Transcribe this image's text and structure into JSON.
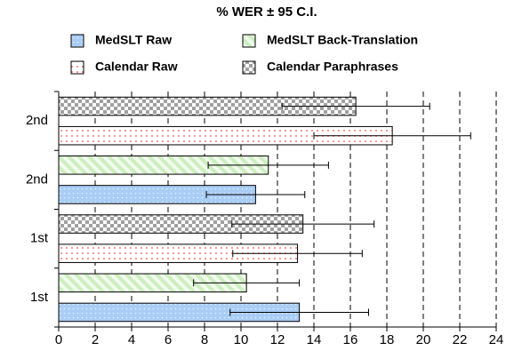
{
  "chart_data": {
    "type": "barh",
    "title": "% WER ± 95 C.I.",
    "categories": [
      "1st",
      "1st",
      "2nd",
      "2nd"
    ],
    "series": [
      {
        "name": "MedSLT Raw",
        "color": "#a9cdf5",
        "pattern": "dots",
        "values": [
          13.2,
          null,
          10.8,
          null
        ],
        "errors": [
          3.8,
          null,
          2.7,
          null
        ]
      },
      {
        "name": "MedSLT Back-Translation",
        "color": "#dcf5d2",
        "pattern": "stripes",
        "values": [
          10.3,
          null,
          11.5,
          null
        ],
        "errors": [
          2.9,
          null,
          3.3,
          null
        ]
      },
      {
        "name": "Calendar Raw",
        "color": "#ff6a6a",
        "pattern": "reddots",
        "values": [
          null,
          13.1,
          null,
          18.3
        ],
        "errors": [
          null,
          3.55,
          null,
          4.3
        ]
      },
      {
        "name": "Calendar Paraphrases",
        "color": "#a0a0a0",
        "pattern": "checks",
        "values": [
          null,
          13.4,
          null,
          16.3
        ],
        "errors": [
          null,
          3.9,
          null,
          4.05
        ]
      }
    ],
    "xlim": [
      0,
      24
    ],
    "xticks": [
      0,
      2,
      4,
      6,
      8,
      10,
      12,
      14,
      16,
      18,
      20,
      22,
      24
    ],
    "grid": true
  }
}
